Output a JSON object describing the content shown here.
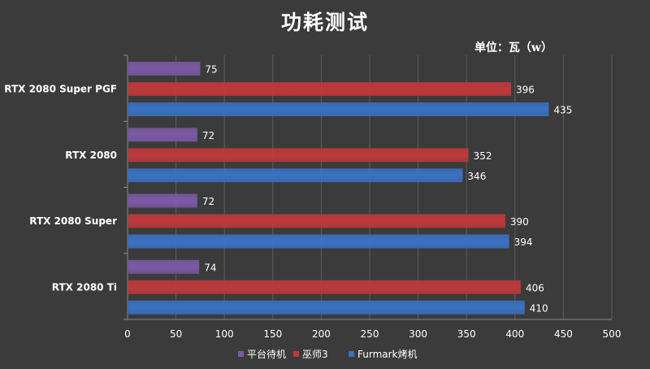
{
  "chart_data": {
    "type": "bar",
    "orientation": "horizontal",
    "title": "功耗测试",
    "unit_label": "单位：瓦（w）",
    "categories": [
      "RTX 2080 Super PGF",
      "RTX 2080",
      "RTX 2080 Super",
      "RTX 2080 Ti"
    ],
    "series": [
      {
        "name": "平台待机",
        "values": [
          75,
          72,
          72,
          74
        ],
        "color": "#7b5aa6"
      },
      {
        "name": "巫师3",
        "values": [
          396,
          352,
          390,
          406
        ],
        "color": "#c0393b"
      },
      {
        "name": "Furmark烤机",
        "values": [
          435,
          346,
          394,
          410
        ],
        "color": "#3a72c4"
      }
    ],
    "xlim": [
      0,
      500
    ],
    "xticks": [
      0,
      50,
      100,
      150,
      200,
      250,
      300,
      350,
      400,
      450,
      500
    ],
    "grid": true,
    "legend_position": "bottom",
    "background": "#3b3b3b"
  }
}
